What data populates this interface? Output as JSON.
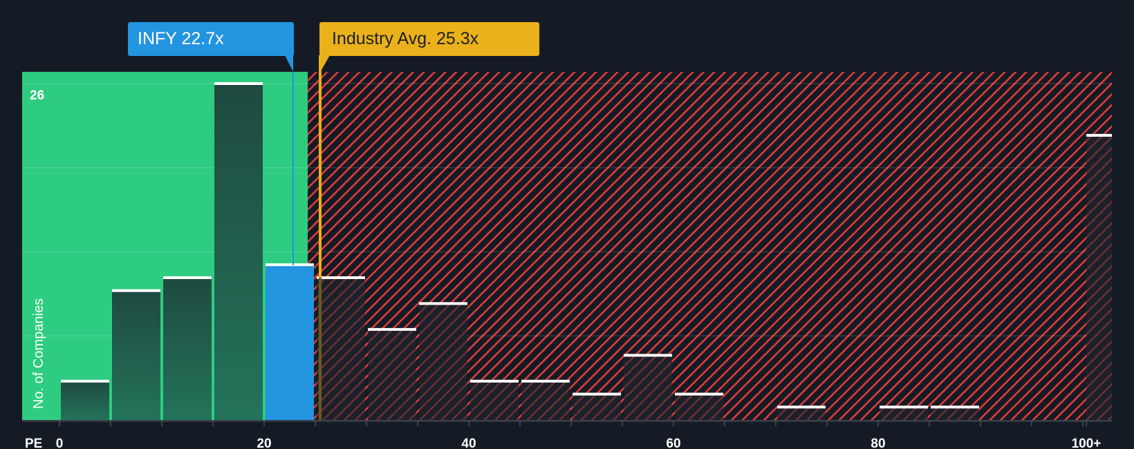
{
  "chart_data": {
    "type": "bar",
    "title": "",
    "xlabel": "PE",
    "ylabel": "No. of Companies",
    "bin_width": 5,
    "categories": [
      "0-5",
      "5-10",
      "10-15",
      "15-20",
      "20-25",
      "25-30",
      "30-35",
      "35-40",
      "40-45",
      "45-50",
      "50-55",
      "55-60",
      "60-65",
      "65-70",
      "70-75",
      "75-80",
      "80-85",
      "85-90",
      "90-95",
      "95-100",
      "100+"
    ],
    "values": [
      3,
      10,
      11,
      26,
      12,
      11,
      7,
      9,
      3,
      3,
      2,
      5,
      2,
      0,
      1,
      0,
      1,
      1,
      0,
      0,
      22
    ],
    "highlight_bin": "20-25",
    "xticks": [
      "0",
      "20",
      "40",
      "60",
      "80",
      "100+"
    ],
    "ymax_label": "26",
    "ylim": [
      0,
      27
    ],
    "grid": true,
    "annotations": [
      {
        "label": "INFY 22.7x",
        "value": 22.7,
        "color": "#2394e0"
      },
      {
        "label": "Industry Avg. 25.3x",
        "value": 25.3,
        "color": "#eab11a"
      }
    ],
    "regions": [
      {
        "name": "undervalued",
        "from": 0,
        "to": 24.5,
        "color": "#2ecc80"
      },
      {
        "name": "overvalued",
        "from": 24.5,
        "to": 105,
        "color": "#e03c3c",
        "pattern": "hatch"
      }
    ]
  },
  "labels": {
    "infy": "INFY 22.7x",
    "industry": "Industry Avg. 25.3x",
    "ylabel": "No. of Companies",
    "xlabel": "PE",
    "ymax": "26"
  },
  "colors": {
    "background": "#151b24",
    "green": "#2ecc80",
    "bar_dark": "#1f4a40",
    "blue": "#2394e0",
    "gold": "#eab11a",
    "red": "#e03c3c"
  }
}
